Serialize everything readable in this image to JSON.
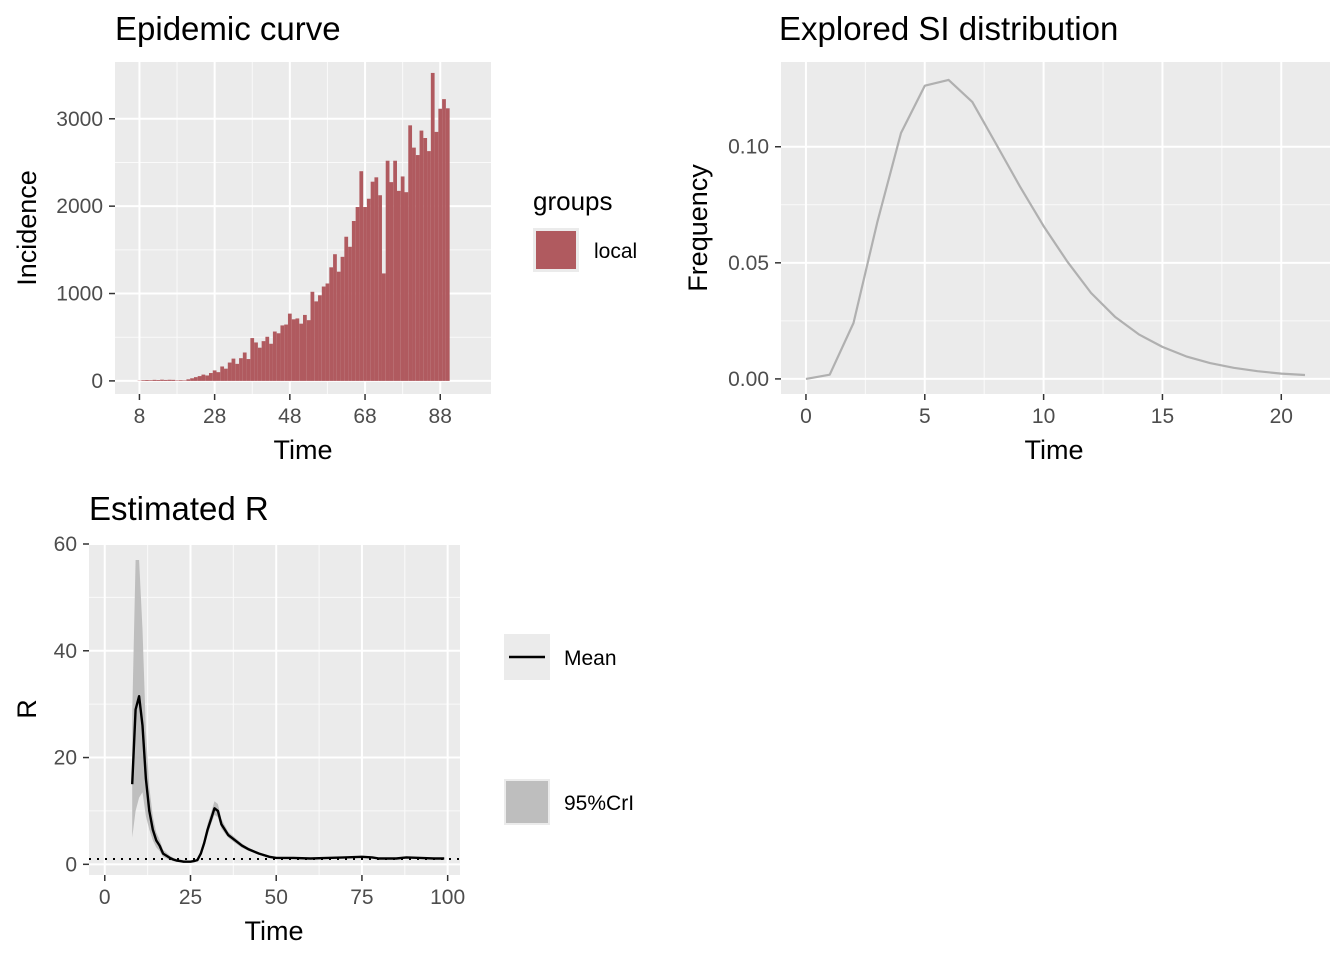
{
  "chart_data": [
    {
      "type": "bar",
      "title": "Epidemic curve",
      "xlabel": "Time",
      "ylabel": "Incidence",
      "xlim": [
        1.5,
        101.5
      ],
      "ylim": [
        -150,
        3650
      ],
      "xticks": [
        8,
        28,
        48,
        68,
        88
      ],
      "yticks": [
        0,
        1000,
        2000,
        3000
      ],
      "legend": {
        "title": "groups",
        "position": "right",
        "entries": [
          {
            "label": "local",
            "color": "#b05a5f"
          }
        ]
      },
      "x_start": 6,
      "values": [
        0,
        0,
        3,
        8,
        10,
        8,
        12,
        10,
        14,
        11,
        13,
        12,
        6,
        8,
        6,
        18,
        30,
        43,
        55,
        72,
        62,
        90,
        120,
        100,
        165,
        140,
        210,
        255,
        195,
        260,
        325,
        250,
        490,
        440,
        380,
        455,
        505,
        425,
        565,
        545,
        635,
        645,
        770,
        705,
        715,
        655,
        755,
        695,
        1020,
        910,
        980,
        1080,
        1115,
        1300,
        1450,
        1250,
        1420,
        1650,
        1535,
        1830,
        1990,
        2400,
        1990,
        2085,
        2280,
        2330,
        2125,
        1230,
        2520,
        2275,
        2520,
        2175,
        2340,
        2160,
        2925,
        2670,
        2585,
        2865,
        2780,
        2630,
        3525,
        2850,
        3115,
        3225,
        3120
      ]
    },
    {
      "type": "line",
      "title": "Explored SI distribution",
      "xlabel": "Time",
      "ylabel": "Frequency",
      "xlim": [
        -1.05,
        22.05
      ],
      "ylim": [
        -0.0065,
        0.1365
      ],
      "xticks": [
        0,
        5,
        10,
        15,
        20
      ],
      "yticks": [
        0.0,
        0.05,
        0.1
      ],
      "ytick_labels": [
        "0.00",
        "0.05",
        "0.10"
      ],
      "series": [
        {
          "color": "#b0b0b0",
          "x": [
            0,
            1,
            2,
            3,
            4,
            5,
            6,
            7,
            8,
            9,
            10,
            11,
            12,
            13,
            14,
            15,
            16,
            17,
            18,
            19,
            20,
            21
          ],
          "y": [
            0.0,
            0.0018,
            0.0241,
            0.0675,
            0.1059,
            0.1263,
            0.1288,
            0.1193,
            0.1012,
            0.0829,
            0.0658,
            0.0505,
            0.037,
            0.0268,
            0.0192,
            0.0138,
            0.0097,
            0.0068,
            0.0048,
            0.0033,
            0.0023,
            0.0017
          ]
        }
      ]
    },
    {
      "type": "area",
      "title": "Estimated R",
      "xlabel": "Time",
      "ylabel": "R",
      "xlim": [
        -4.6,
        103.6
      ],
      "ylim": [
        -2,
        60
      ],
      "xticks": [
        0,
        25,
        50,
        75,
        100
      ],
      "yticks": [
        0,
        20,
        40,
        60
      ],
      "reference_line": {
        "y": 1,
        "style": "dotted"
      },
      "legend": {
        "position": "right",
        "entries": [
          {
            "label": "Mean",
            "kind": "line",
            "color": "#000000"
          },
          {
            "label": "95%CrI",
            "kind": "fill",
            "color": "#bebebe"
          }
        ]
      },
      "series": [
        {
          "name": "Mean",
          "x": [
            8,
            9,
            10,
            11,
            12,
            13,
            14,
            15,
            16,
            17,
            18,
            19,
            20,
            21,
            22,
            23,
            24,
            25,
            26,
            27,
            28,
            29,
            30,
            31,
            32,
            33,
            34,
            35,
            36,
            38,
            40,
            42,
            45,
            48,
            50,
            55,
            60,
            65,
            70,
            75,
            78,
            80,
            85,
            88,
            92,
            96,
            99
          ],
          "y": [
            15,
            29,
            31.5,
            26,
            16,
            10,
            6.5,
            4.5,
            3.5,
            2,
            1.6,
            1.2,
            0.9,
            0.7,
            0.6,
            0.5,
            0.5,
            0.5,
            0.6,
            0.8,
            2,
            4,
            6.5,
            8.5,
            10.5,
            10,
            7.5,
            6.5,
            5.5,
            4.5,
            3.5,
            2.8,
            2,
            1.4,
            1.2,
            1.2,
            1.1,
            1.2,
            1.3,
            1.4,
            1.3,
            1.1,
            1.1,
            1.3,
            1.2,
            1.1,
            1.1
          ]
        },
        {
          "name": "95%CrI",
          "x": [
            8,
            9,
            10,
            11,
            12,
            13,
            14,
            15,
            16,
            17,
            18,
            19,
            20,
            21,
            22,
            23,
            24,
            25,
            26,
            27,
            28,
            29,
            30,
            31,
            32,
            33,
            34,
            35,
            36,
            38,
            40,
            42,
            45,
            48,
            50,
            55,
            60,
            65,
            70,
            75,
            78,
            80,
            85,
            88,
            92,
            96,
            99
          ],
          "lower": [
            5,
            10,
            12.5,
            13.5,
            9,
            6.5,
            4.5,
            3.2,
            2.5,
            1.4,
            1.1,
            0.8,
            0.6,
            0.45,
            0.4,
            0.35,
            0.35,
            0.35,
            0.4,
            0.6,
            1.6,
            3.3,
            5.5,
            7.5,
            9.3,
            8.8,
            6.7,
            5.8,
            5,
            4,
            3.1,
            2.5,
            1.8,
            1.25,
            1.1,
            1.1,
            1,
            1.1,
            1.2,
            1.3,
            1.2,
            1,
            1,
            1.2,
            1.1,
            1,
            1
          ],
          "upper": [
            28,
            57,
            57,
            44,
            25,
            14.5,
            9,
            6,
            4.6,
            2.7,
            2.2,
            1.6,
            1.2,
            1,
            0.9,
            0.75,
            0.7,
            0.7,
            0.8,
            1.05,
            2.5,
            4.8,
            7.6,
            9.7,
            11.8,
            11.3,
            8.5,
            7.3,
            6.1,
            5,
            3.9,
            3.1,
            2.2,
            1.55,
            1.35,
            1.35,
            1.2,
            1.35,
            1.45,
            1.55,
            1.45,
            1.25,
            1.25,
            1.4,
            1.35,
            1.2,
            1.2
          ]
        }
      ]
    }
  ]
}
